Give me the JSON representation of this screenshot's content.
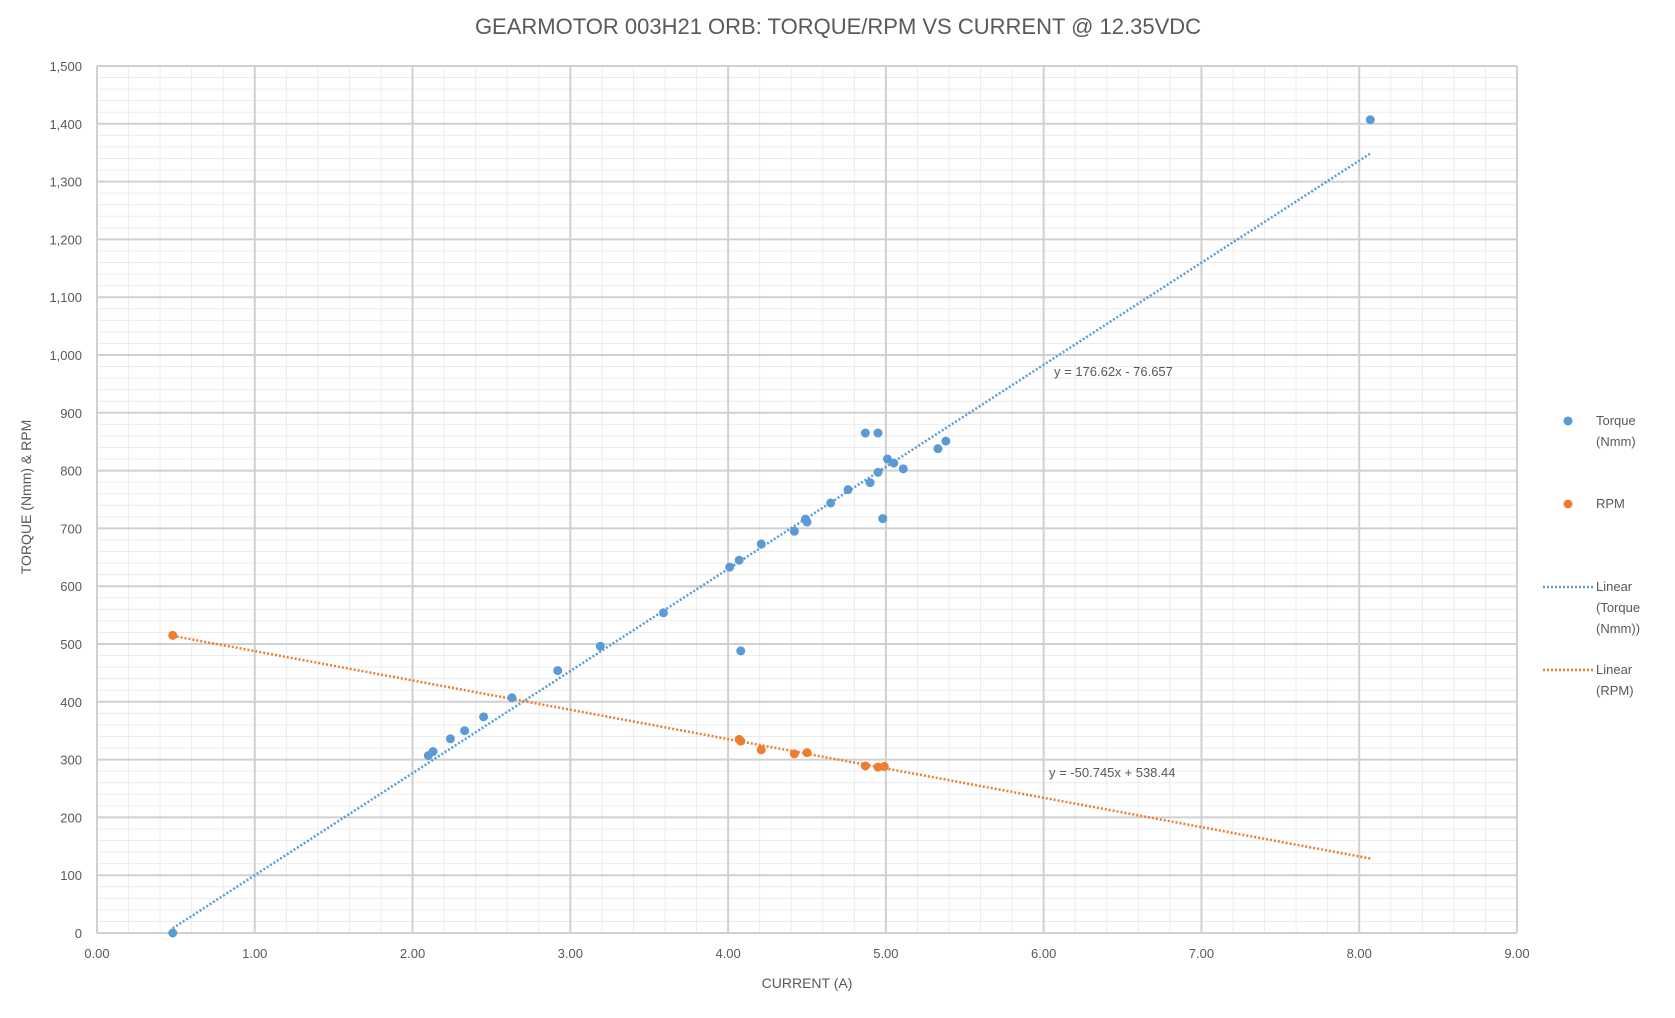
{
  "chart_data": {
    "type": "scatter",
    "title": "GEARMOTOR 003H21 ORB: TORQUE/RPM VS CURRENT @ 12.35VDC",
    "xlabel": "CURRENT (A)",
    "ylabel": "TORQUE (Nmm) & RPM",
    "xlim": [
      0,
      9
    ],
    "ylim": [
      0,
      1500
    ],
    "xticks": [
      "0.00",
      "1.00",
      "2.00",
      "3.00",
      "4.00",
      "5.00",
      "6.00",
      "7.00",
      "8.00",
      "9.00"
    ],
    "yticks": [
      "0",
      "100",
      "200",
      "300",
      "400",
      "500",
      "600",
      "700",
      "800",
      "900",
      "1,000",
      "1,100",
      "1,200",
      "1,300",
      "1,400",
      "1,500"
    ],
    "grid": true,
    "legend_position": "right",
    "series": [
      {
        "name": "Torque (Nmm)",
        "color": "#5B9BD5",
        "points": [
          [
            0.48,
            0
          ],
          [
            2.1,
            307
          ],
          [
            2.13,
            314
          ],
          [
            2.24,
            336
          ],
          [
            2.33,
            350
          ],
          [
            2.45,
            374
          ],
          [
            2.63,
            407
          ],
          [
            2.92,
            454
          ],
          [
            3.19,
            496
          ],
          [
            3.59,
            554
          ],
          [
            4.01,
            633
          ],
          [
            4.07,
            645
          ],
          [
            4.08,
            488
          ],
          [
            4.21,
            673
          ],
          [
            4.42,
            695
          ],
          [
            4.49,
            716
          ],
          [
            4.5,
            711
          ],
          [
            4.65,
            744
          ],
          [
            4.76,
            767
          ],
          [
            4.87,
            865
          ],
          [
            4.9,
            779
          ],
          [
            4.95,
            865
          ],
          [
            4.95,
            797
          ],
          [
            4.98,
            717
          ],
          [
            5.01,
            820
          ],
          [
            5.05,
            813
          ],
          [
            5.11,
            803
          ],
          [
            5.33,
            838
          ],
          [
            5.38,
            851
          ],
          [
            8.07,
            1407
          ]
        ]
      },
      {
        "name": "RPM",
        "color": "#ED7D31",
        "points": [
          [
            0.48,
            515
          ],
          [
            4.07,
            335
          ],
          [
            4.08,
            332
          ],
          [
            4.21,
            317
          ],
          [
            4.42,
            310
          ],
          [
            4.5,
            312
          ],
          [
            4.87,
            289
          ],
          [
            4.95,
            287
          ],
          [
            4.99,
            288
          ]
        ]
      }
    ],
    "trendlines": [
      {
        "name": "Linear (Torque (Nmm))",
        "color": "#5B9BD5",
        "slope": 176.62,
        "intercept": -76.657,
        "x_range": [
          0.48,
          8.07
        ],
        "equation": "y = 176.62x - 76.657"
      },
      {
        "name": "Linear (RPM)",
        "color": "#ED7D31",
        "slope": -50.745,
        "intercept": 538.44,
        "x_range": [
          0.48,
          8.07
        ],
        "equation": "y = -50.745x + 538.44"
      }
    ],
    "legend": [
      {
        "kind": "marker",
        "color": "#5B9BD5",
        "lines": [
          "Torque",
          "(Nmm)"
        ]
      },
      {
        "kind": "marker",
        "color": "#ED7D31",
        "lines": [
          "RPM"
        ]
      },
      {
        "kind": "line",
        "color": "#5B9BD5",
        "lines": [
          "Linear",
          "(Torque",
          "(Nmm))"
        ]
      },
      {
        "kind": "line",
        "color": "#ED7D31",
        "lines": [
          "Linear",
          "(RPM)"
        ]
      }
    ]
  }
}
